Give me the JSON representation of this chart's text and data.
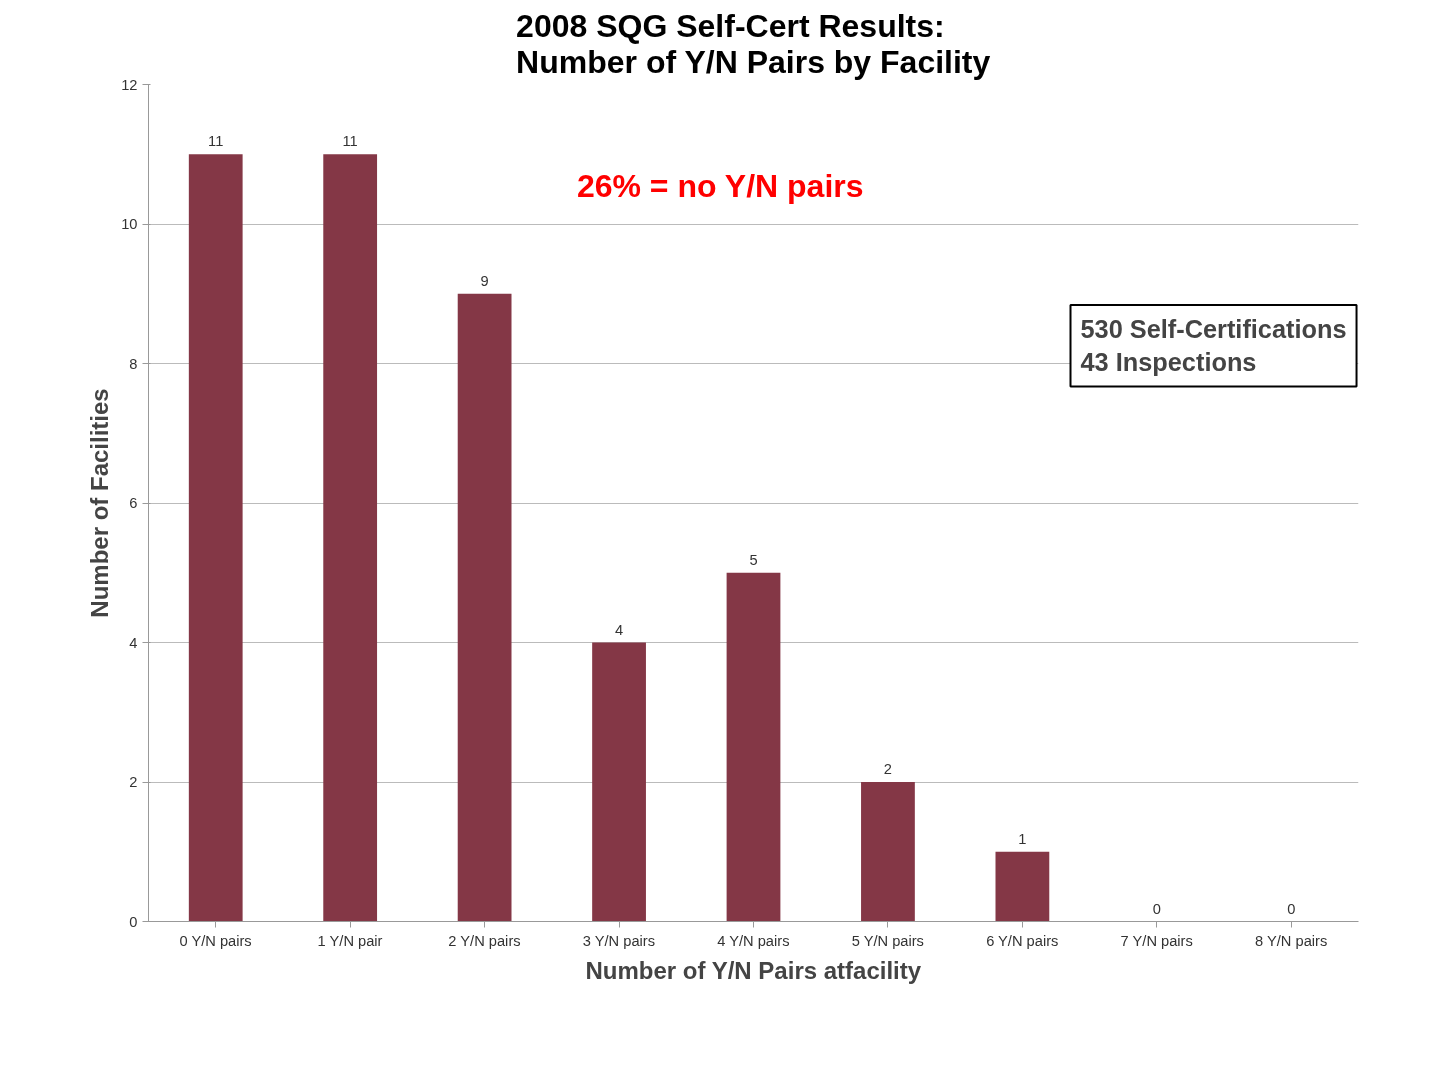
{
  "chart_data": {
    "type": "bar",
    "title": "2008 SQG Self-Cert Results:\nNumber of Y/N Pairs by Facility",
    "xlabel": "Number of Y/N Pairs atfacility",
    "ylabel": "Number of Facilities",
    "categories": [
      "0 Y/N pairs",
      "1 Y/N pair",
      "2 Y/N pairs",
      "3 Y/N pairs",
      "4 Y/N pairs",
      "5 Y/N pairs",
      "6 Y/N pairs",
      "7 Y/N pairs",
      "8 Y/N pairs"
    ],
    "values": [
      11,
      11,
      9,
      4,
      5,
      2,
      1,
      0,
      0
    ],
    "color": "#843746",
    "ylim": [
      0,
      12
    ],
    "yticks": [
      0,
      2,
      4,
      6,
      8,
      10,
      12
    ],
    "grid": "y",
    "data_labels": true,
    "annotations": [
      "26% = no Y/N pairs",
      "530 Self-Certifications\n43 Inspections"
    ]
  }
}
